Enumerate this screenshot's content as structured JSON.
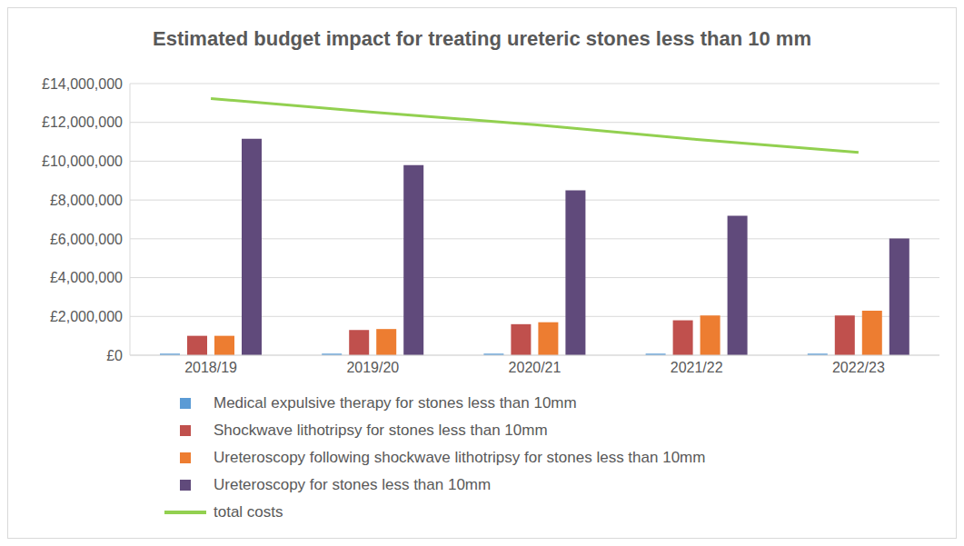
{
  "chart_data": {
    "type": "bar",
    "title": "Estimated budget impact for treating ureteric stones less than 10 mm",
    "categories": [
      "2018/19",
      "2019/20",
      "2020/21",
      "2021/22",
      "2022/23"
    ],
    "series": [
      {
        "name": "Medical expulsive therapy for stones less than 10mm",
        "color": "#5b9bd5",
        "type": "bar",
        "values": [
          80000,
          80000,
          80000,
          80000,
          80000
        ]
      },
      {
        "name": "Shockwave lithotripsy for stones less than 10mm",
        "color": "#c0504d",
        "type": "bar",
        "values": [
          1000000,
          1300000,
          1600000,
          1800000,
          2050000
        ]
      },
      {
        "name": "Ureteroscopy following shockwave lithotripsy for stones less than 10mm",
        "color": "#ed7d31",
        "type": "bar",
        "values": [
          1000000,
          1350000,
          1700000,
          2050000,
          2300000
        ]
      },
      {
        "name": "Ureteroscopy for stones less than 10mm",
        "color": "#604a7b",
        "type": "bar",
        "values": [
          11150000,
          9800000,
          8500000,
          7190000,
          6020000
        ]
      },
      {
        "name": "total costs",
        "color": "#92d050",
        "type": "line",
        "values": [
          13230000,
          12530000,
          11880000,
          11120000,
          10450000
        ]
      }
    ],
    "ylim": [
      0,
      14000000
    ],
    "yticks": [
      {
        "value": 0,
        "label": "£0"
      },
      {
        "value": 2000000,
        "label": "£2,000,000"
      },
      {
        "value": 4000000,
        "label": "£4,000,000"
      },
      {
        "value": 6000000,
        "label": "£6,000,000"
      },
      {
        "value": 8000000,
        "label": "£8,000,000"
      },
      {
        "value": 10000000,
        "label": "£10,000,000"
      },
      {
        "value": 12000000,
        "label": "£12,000,000"
      },
      {
        "value": 14000000,
        "label": "£14,000,000"
      }
    ],
    "grid": true,
    "legend": "bottom"
  }
}
